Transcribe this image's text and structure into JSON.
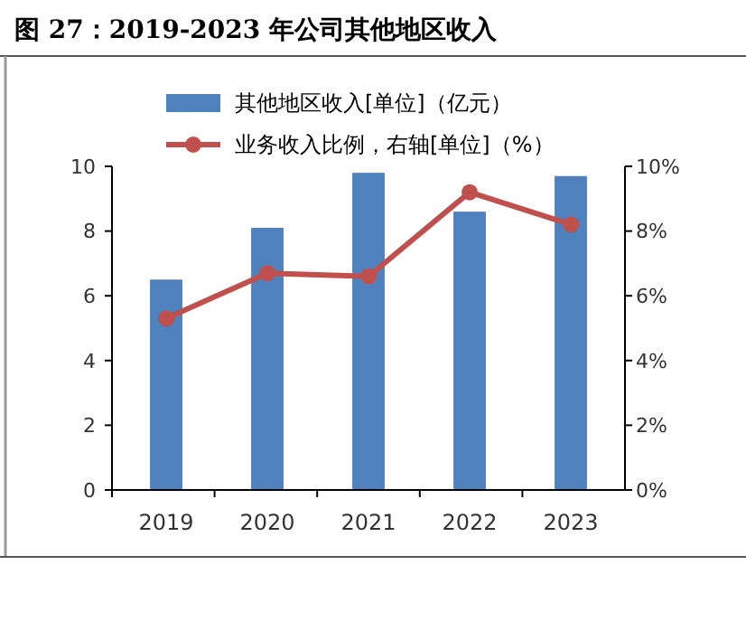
{
  "chart_data": {
    "type": "bar",
    "title": "图 27：2019-2023 年公司其他地区收入",
    "categories": [
      "2019",
      "2020",
      "2021",
      "2022",
      "2023"
    ],
    "series": [
      {
        "name": "其他地区收入[单位]（亿元）",
        "color": "#4f81bd",
        "values": [
          6.5,
          8.1,
          9.8,
          8.6,
          9.7
        ]
      },
      {
        "name": "业务收入比例，右轴[单位]（%）",
        "type": "line",
        "axis": "y2",
        "color": "#c0504d",
        "marker": "circle",
        "values": [
          5.3,
          6.7,
          6.6,
          9.2,
          8.2
        ]
      }
    ],
    "ylim": [
      0,
      10
    ],
    "yticks": [
      0,
      2,
      4,
      6,
      8,
      10
    ],
    "y2lim": [
      0,
      10
    ],
    "y2ticks": [
      {
        "value": 0,
        "label": "0%"
      },
      {
        "value": 2,
        "label": "2%"
      },
      {
        "value": 4,
        "label": "4%"
      },
      {
        "value": 6,
        "label": "6%"
      },
      {
        "value": 8,
        "label": "8%"
      },
      {
        "value": 10,
        "label": "10%"
      }
    ],
    "legend": "top",
    "grid": false
  }
}
